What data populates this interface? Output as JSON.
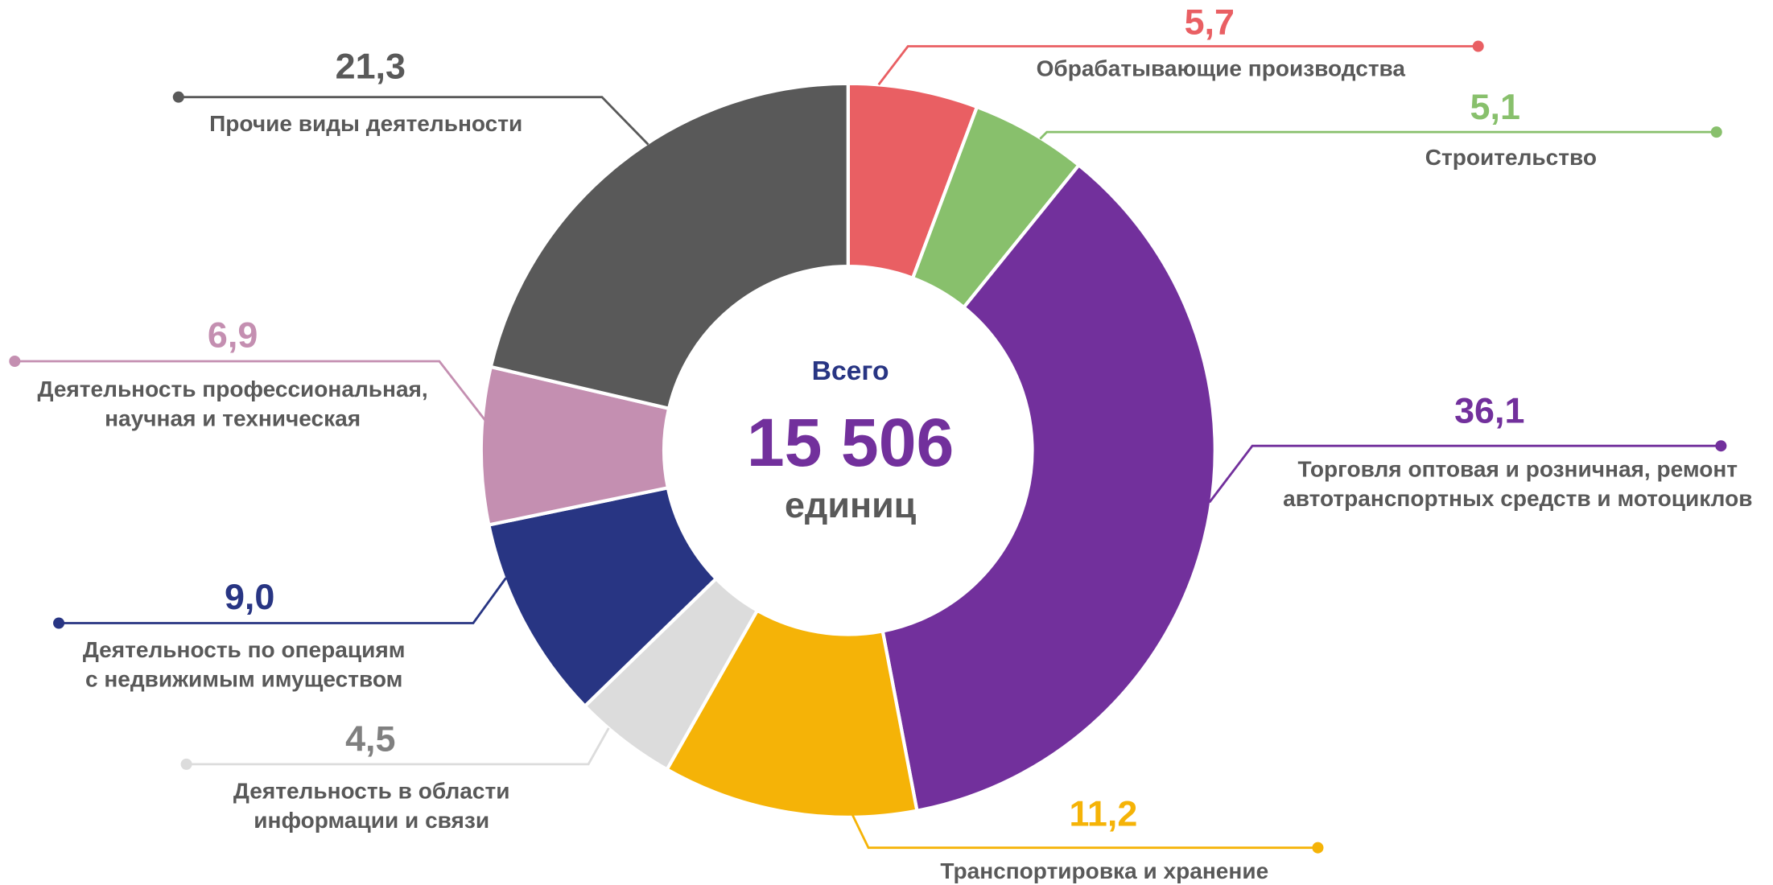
{
  "chart_data": {
    "type": "donut",
    "center": [
      "Всего",
      "15 506",
      "единиц"
    ],
    "categories": [
      [
        "Обрабатывающие производства"
      ],
      [
        "Строительство"
      ],
      [
        "Торговля оптовая и розничная, ремонт",
        "автотранспортных средств и мотоциклов"
      ],
      [
        "Транспортировка и хранение"
      ],
      [
        "Деятельность в области",
        "информации и связи"
      ],
      [
        "Деятельность по операциям",
        "с недвижимым имуществом"
      ],
      [
        "Деятельность профессиональная,",
        "научная и техническая"
      ],
      [
        "Прочие виды деятельности"
      ]
    ],
    "values": [
      5.7,
      5.1,
      36.1,
      11.2,
      4.5,
      9.0,
      6.9,
      21.3
    ],
    "value_labels": [
      "5,7",
      "5,1",
      "36,1",
      "11,2",
      "4,5",
      "9,0",
      "6,9",
      "21,3"
    ],
    "colors": [
      "#e95f63",
      "#88c06c",
      "#72309c",
      "#f5b307",
      "#dcdcdc",
      "#283583",
      "#c48fb1",
      "#595959"
    ],
    "label_colors": [
      "#e95f63",
      "#88c06c",
      "#72309c",
      "#f5b307",
      "#808080",
      "#283583",
      "#c48fb1",
      "#595959"
    ]
  }
}
